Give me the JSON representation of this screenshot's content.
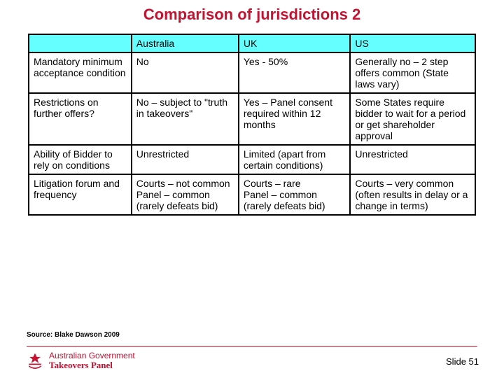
{
  "colors": {
    "title_color": "#c41230",
    "header_bg": "#66ffff",
    "border_color": "#000000",
    "divider_color": "#c41230",
    "logo_color": "#c41230",
    "text_color": "#000000",
    "background_color": "#ffffff"
  },
  "typography": {
    "title_fontsize": 22,
    "cell_fontsize": 14,
    "source_fontsize": 10,
    "slidenum_fontsize": 13
  },
  "title": "Comparison of jurisdictions 2",
  "table": {
    "columns": [
      "",
      "Australia",
      "UK",
      "US"
    ],
    "column_widths_pct": [
      23,
      24,
      25,
      28
    ],
    "header_bg": "#66ffff",
    "rows": [
      {
        "label": "Mandatory minimum acceptance condition",
        "cells": [
          "No",
          "Yes - 50%",
          "Generally no – 2 step offers common (State laws vary)"
        ]
      },
      {
        "label": "Restrictions on further offers?",
        "cells": [
          "No – subject to \"truth in takeovers\"",
          "Yes – Panel consent required within 12 months",
          "Some States require bidder to wait for a period or get shareholder approval"
        ]
      },
      {
        "label": "Ability of Bidder to rely on conditions",
        "cells": [
          "Unrestricted",
          "Limited (apart from certain conditions)",
          "Unrestricted"
        ]
      },
      {
        "label": "Litigation forum and frequency",
        "cells": [
          "Courts – not common\nPanel  – common (rarely defeats bid)",
          "Courts – rare\nPanel  – common (rarely defeats bid)",
          "Courts – very common (often results in delay or a change in terms)"
        ]
      }
    ]
  },
  "source": "Source: Blake Dawson 2009",
  "footer": {
    "logo_line1": "Australian Government",
    "logo_line2": "Takeovers Panel",
    "slide_number": "Slide 51"
  }
}
